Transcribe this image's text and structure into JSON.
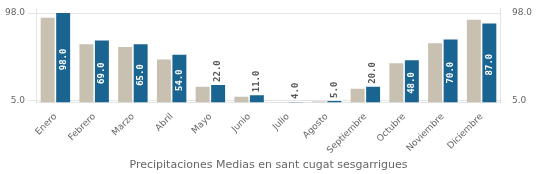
{
  "chart_data": {
    "type": "bar",
    "title": "Precipitaciones Medias en sant cugat sesgarrigues",
    "categories": [
      "Enero",
      "Febrero",
      "Marzo",
      "Abril",
      "Mayo",
      "Junio",
      "Julio",
      "Agosto",
      "Septiembre",
      "Octubre",
      "Noviembre",
      "Diciembre"
    ],
    "series": [
      {
        "color": "#c8c0b0",
        "values": [
          93.0,
          65.0,
          62.0,
          49.0,
          20.0,
          9.5,
          3.5,
          4.5,
          18.0,
          45.0,
          66.0,
          91.0
        ]
      },
      {
        "color": "#1a6491",
        "values": [
          98.0,
          69.0,
          65.0,
          54.0,
          22.0,
          11.0,
          4.0,
          5.0,
          20.0,
          48.0,
          70.0,
          87.0
        ],
        "data_labels": true,
        "value_labels": [
          "98.0",
          "69.0",
          "65.0",
          "54.0",
          "22.0",
          "11.0",
          "4.0",
          "5.0",
          "20.0",
          "48.0",
          "70.0",
          "87.0"
        ]
      }
    ],
    "ylim": [
      3.5,
      103
    ],
    "yticks": [
      {
        "value": 5,
        "label": "5.0"
      },
      {
        "value": 98,
        "label": "98.0"
      }
    ],
    "y2lim": [
      3.5,
      103
    ],
    "y2ticks": [
      {
        "value": 5,
        "label": "5.0"
      },
      {
        "value": 98,
        "label": "98.0"
      }
    ],
    "grid": true
  }
}
